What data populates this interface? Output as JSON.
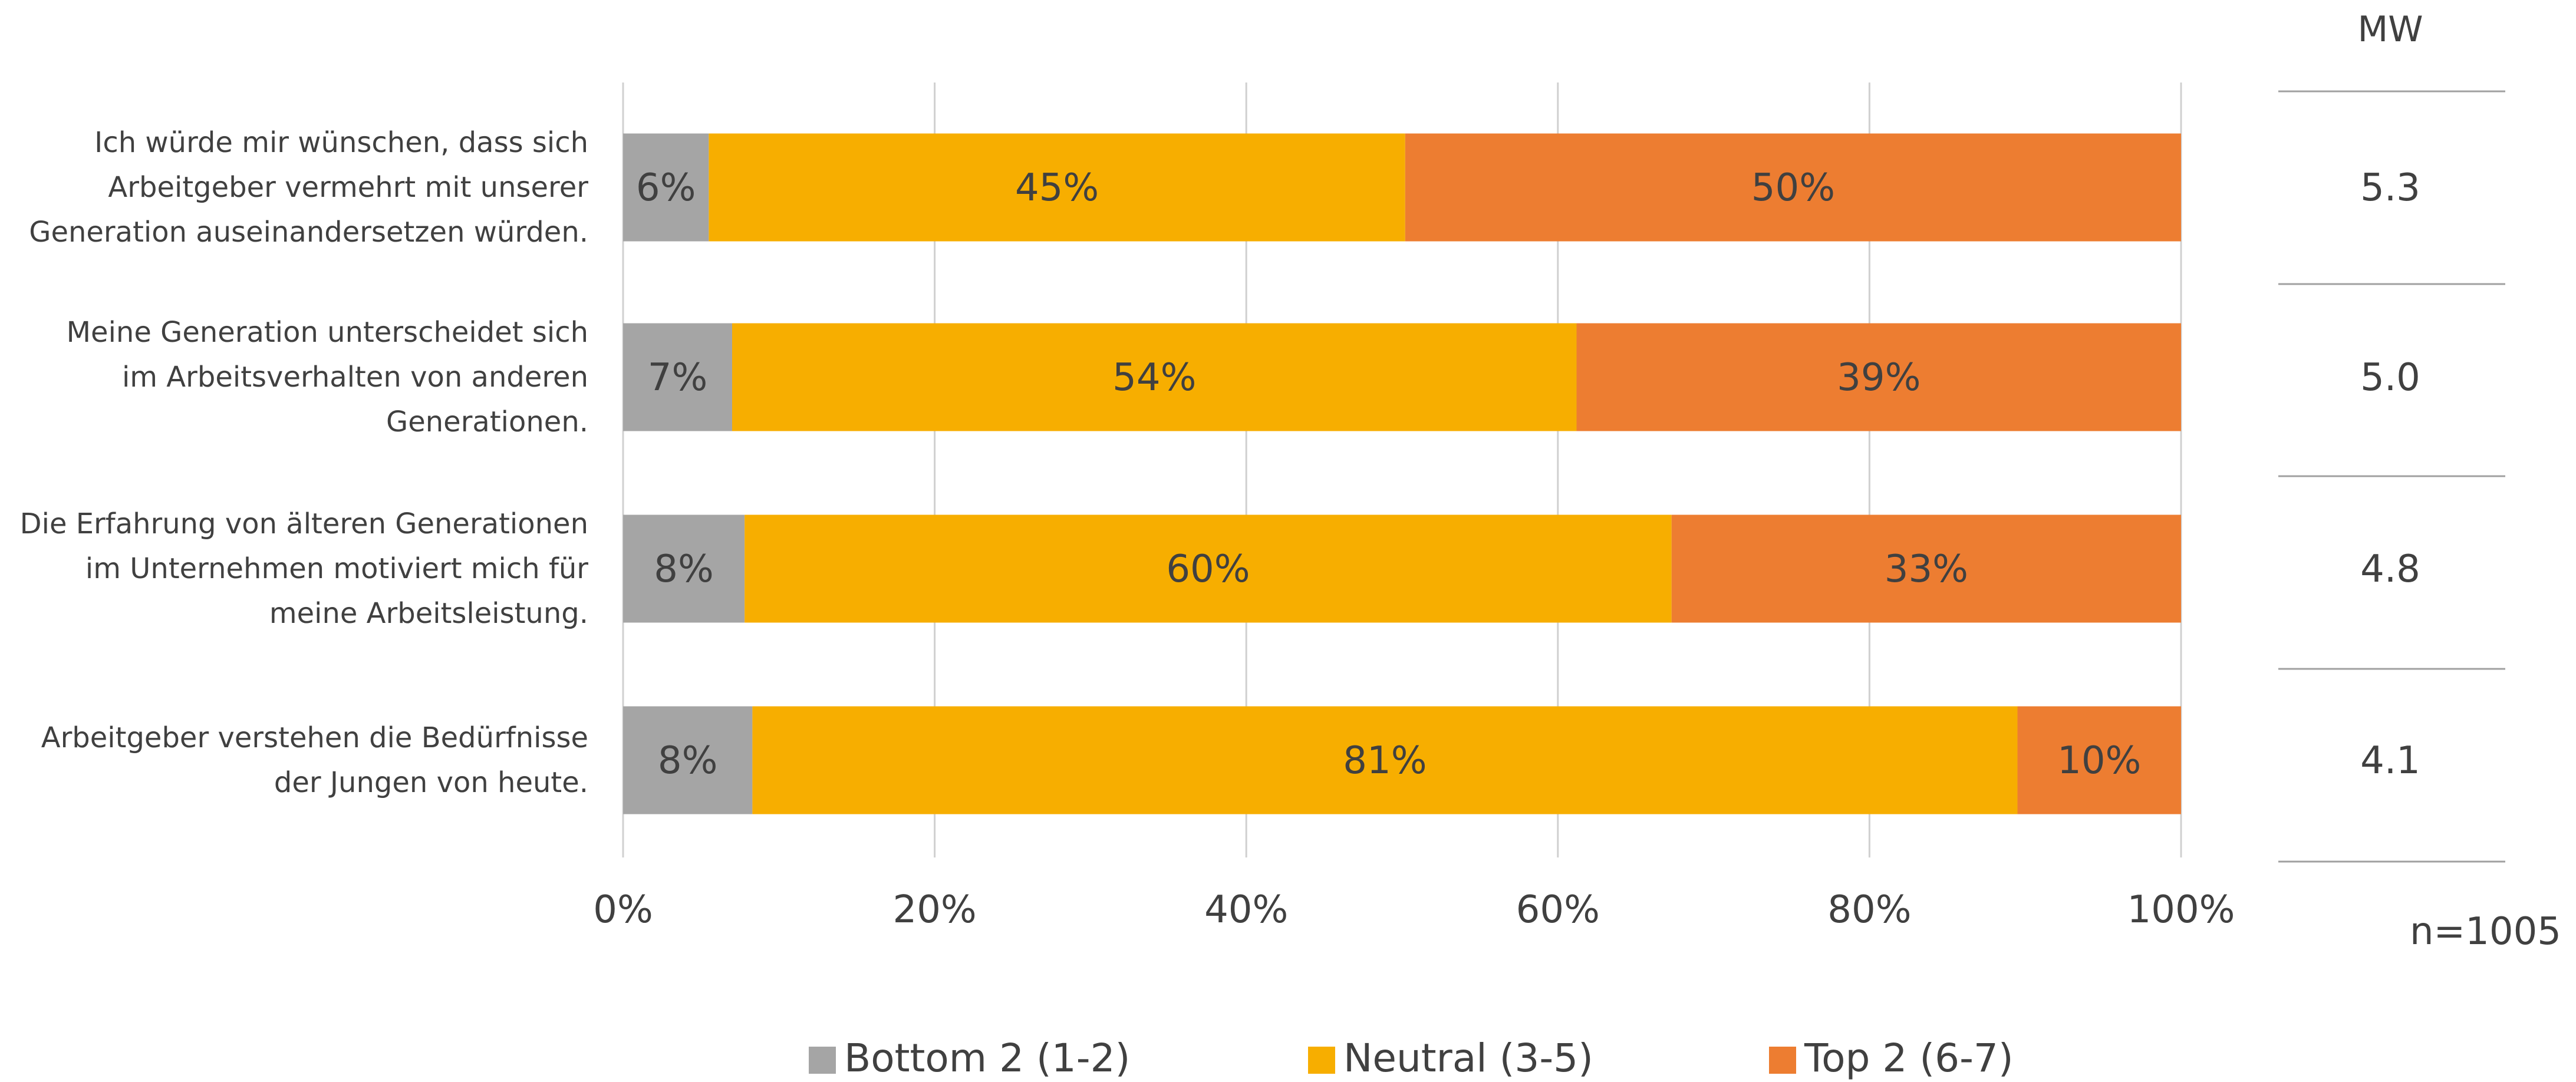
{
  "chart_data": {
    "type": "bar",
    "orientation": "horizontal",
    "stacked": true,
    "categories": [
      [
        "Ich würde mir wünschen, dass sich",
        "Arbeitgeber vermehrt mit unserer",
        "Generation auseinandersetzen würden."
      ],
      [
        "Meine Generation unterscheidet sich",
        "im Arbeitsverhalten von anderen",
        "Generationen."
      ],
      [
        "Die Erfahrung von älteren Generationen",
        "im Unternehmen motiviert mich für",
        "meine Arbeitsleistung."
      ],
      [
        "Arbeitgeber verstehen die Bedürfnisse",
        "der Jungen von heute."
      ]
    ],
    "series": [
      {
        "name": "Bottom 2 (1-2)",
        "color": "#a5a5a5",
        "values": [
          5.5,
          7,
          7.8,
          8.3
        ],
        "labels": [
          "6%",
          "7%",
          "8%",
          "8%"
        ]
      },
      {
        "name": "Neutral (3-5)",
        "color": "#f7ae00",
        "values": [
          44.7,
          54.2,
          59.5,
          81.2
        ],
        "labels": [
          "45%",
          "54%",
          "60%",
          "81%"
        ]
      },
      {
        "name": "Top 2 (6-7)",
        "color": "#ed7d31",
        "values": [
          49.8,
          38.8,
          32.7,
          10.5
        ],
        "labels": [
          "50%",
          "39%",
          "33%",
          "10%"
        ]
      }
    ],
    "x_ticks": [
      "0%",
      "20%",
      "40%",
      "60%",
      "80%",
      "100%"
    ],
    "xlim": [
      0,
      100
    ],
    "grid": true,
    "legend_position": "bottom",
    "mw": {
      "header": "MW",
      "values": [
        "5.3",
        "5.0",
        "4.8",
        "4.1"
      ]
    },
    "sample_size": "n=1005"
  }
}
